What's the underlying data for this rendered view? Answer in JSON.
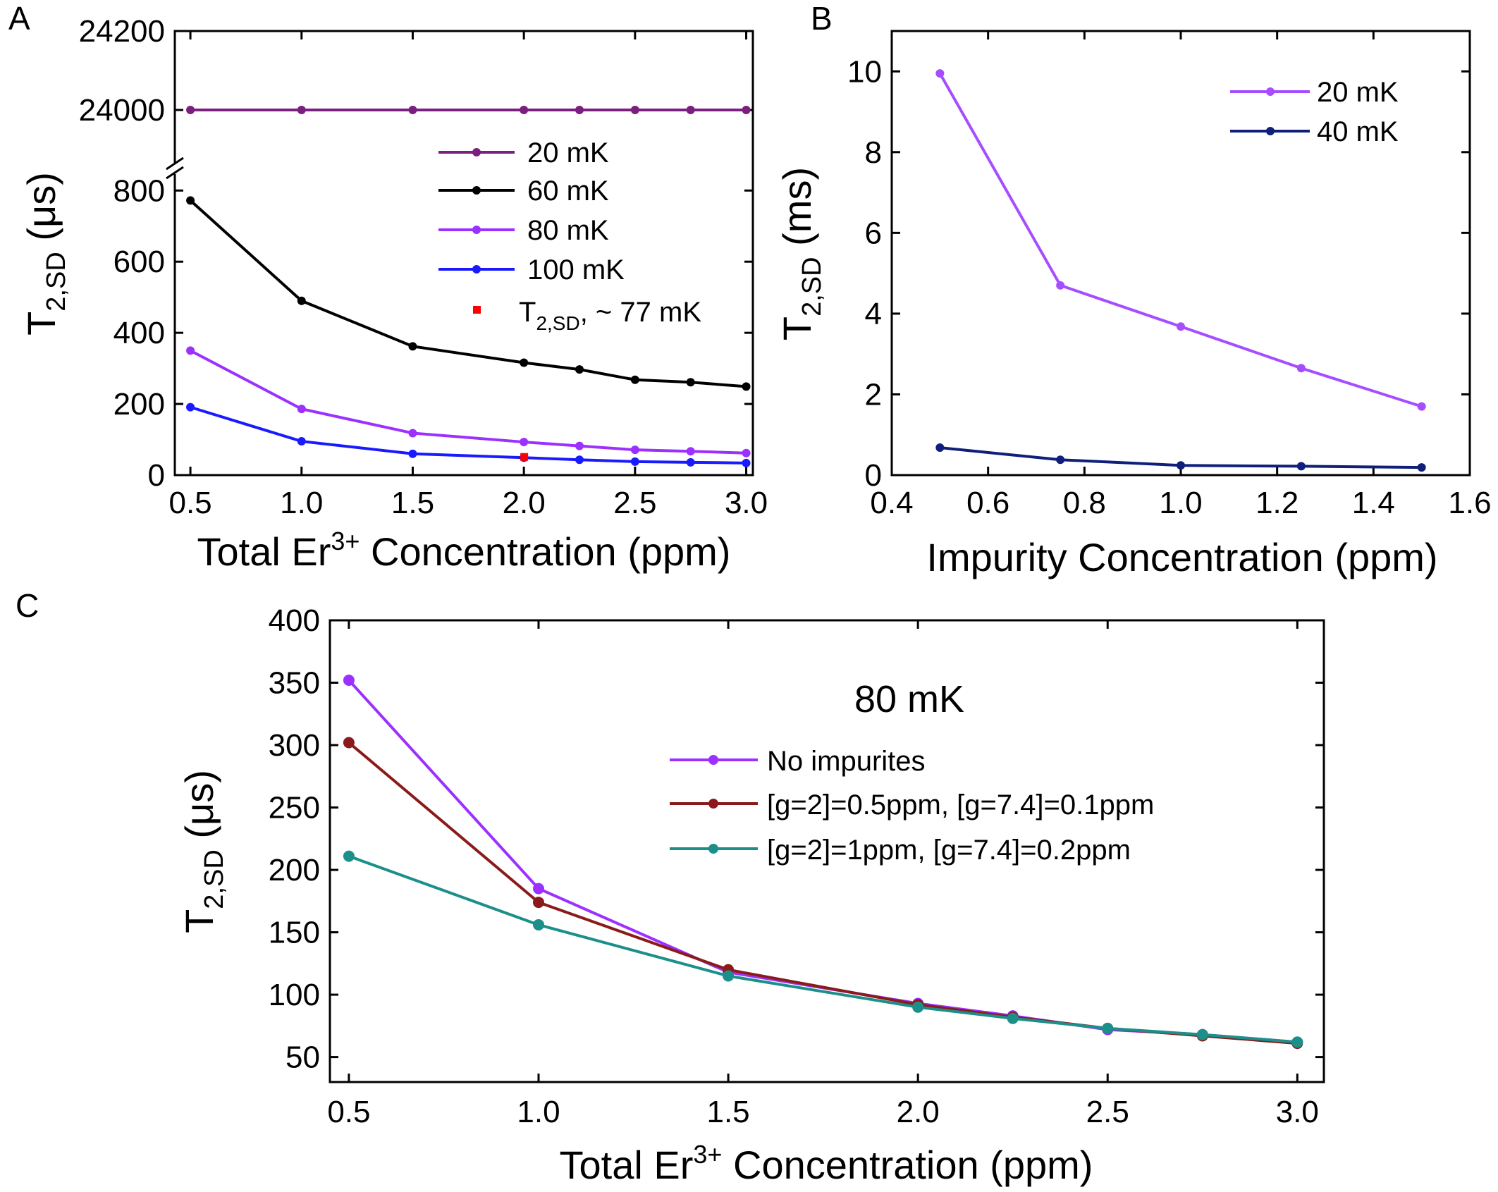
{
  "chart_data": [
    {
      "panel": "A",
      "type": "line",
      "xlabel_main": "Total Er",
      "xlabel_sup": "3+",
      "xlabel_rest": " Concentration (ppm)",
      "ylabel_main": "T",
      "ylabel_sub": "2,SD",
      "ylabel_rest": " (μs)",
      "xlim": [
        0.43,
        3.03
      ],
      "ylim_lower": [
        0,
        860
      ],
      "ylim_upper": [
        23850,
        24200
      ],
      "axis_break": true,
      "xticks": [
        "0.5",
        "1.0",
        "1.5",
        "2.0",
        "2.5",
        "3.0"
      ],
      "yticks_lower": [
        "0",
        "200",
        "400",
        "600",
        "800"
      ],
      "yticks_upper": [
        "24000",
        "24200"
      ],
      "x": [
        0.5,
        1.0,
        1.5,
        2.0,
        2.25,
        2.5,
        2.75,
        3.0
      ],
      "series": [
        {
          "name": "20 mK",
          "color": "#7b1f7e",
          "values": [
            24000,
            24000,
            24000,
            24000,
            24000,
            24000,
            24000,
            24000
          ]
        },
        {
          "name": "60 mK",
          "color": "#000000",
          "values": [
            772,
            490,
            362,
            316,
            297,
            268,
            261,
            249
          ]
        },
        {
          "name": "80 mK",
          "color": "#9b30ff",
          "values": [
            350,
            186,
            118,
            93,
            82,
            71,
            67,
            62
          ]
        },
        {
          "name": "100 mK",
          "color": "#1a1aff",
          "values": [
            191,
            95,
            60,
            49,
            43,
            38,
            36,
            34
          ]
        }
      ],
      "point": {
        "name_main": "T",
        "name_sub": "2,SD",
        "name_rest": ", ~ 77 mK",
        "color": "#ff0000",
        "x": 2.0,
        "y": 52
      },
      "legend": "center-right"
    },
    {
      "panel": "B",
      "type": "line",
      "xlabel": "Impurity Concentration (ppm)",
      "ylabel_main": "T",
      "ylabel_sub": "2,SD",
      "ylabel_rest": " (ms)",
      "xlim": [
        0.4,
        1.6
      ],
      "ylim": [
        0,
        11
      ],
      "xticks": [
        "0.4",
        "0.6",
        "0.8",
        "1.0",
        "1.2",
        "1.4",
        "1.6"
      ],
      "yticks": [
        "0",
        "2",
        "4",
        "6",
        "8",
        "10"
      ],
      "x": [
        0.5,
        0.75,
        1.0,
        1.25,
        1.5
      ],
      "series": [
        {
          "name": "20 mK",
          "color": "#a64dff",
          "values": [
            9.95,
            4.7,
            3.68,
            2.65,
            1.7
          ]
        },
        {
          "name": "40 mK",
          "color": "#0f1f7a",
          "values": [
            0.68,
            0.38,
            0.24,
            0.22,
            0.19
          ]
        }
      ],
      "legend": "top-right"
    },
    {
      "panel": "C",
      "type": "line",
      "title": "80 mK",
      "xlabel_main": "Total Er",
      "xlabel_sup": "3+",
      "xlabel_rest": " Concentration (ppm)",
      "ylabel_main": "T",
      "ylabel_sub": "2,SD",
      "ylabel_rest": " (μs)",
      "xlim": [
        0.45,
        3.07
      ],
      "ylim": [
        30,
        400
      ],
      "xticks": [
        "0.5",
        "1.0",
        "1.5",
        "2.0",
        "2.5",
        "3.0"
      ],
      "yticks": [
        "50",
        "100",
        "150",
        "200",
        "250",
        "300",
        "350",
        "400"
      ],
      "x": [
        0.5,
        1.0,
        1.5,
        2.0,
        2.25,
        2.5,
        2.75,
        3.0
      ],
      "series": [
        {
          "name": "No impurites",
          "color": "#9b30ff",
          "values": [
            352,
            185,
            118,
            93,
            83,
            72,
            68,
            62
          ]
        },
        {
          "name": "[g=2]=0.5ppm, [g=7.4]=0.1ppm",
          "color": "#8b1a1a",
          "values": [
            302,
            174,
            120,
            92,
            82,
            73,
            67,
            61
          ]
        },
        {
          "name": "[g=2]=1ppm, [g=7.4]=0.2ppm",
          "color": "#1b8f8a",
          "values": [
            211,
            156,
            115,
            90,
            81,
            73,
            68,
            62
          ]
        }
      ],
      "legend": "center-right"
    }
  ]
}
